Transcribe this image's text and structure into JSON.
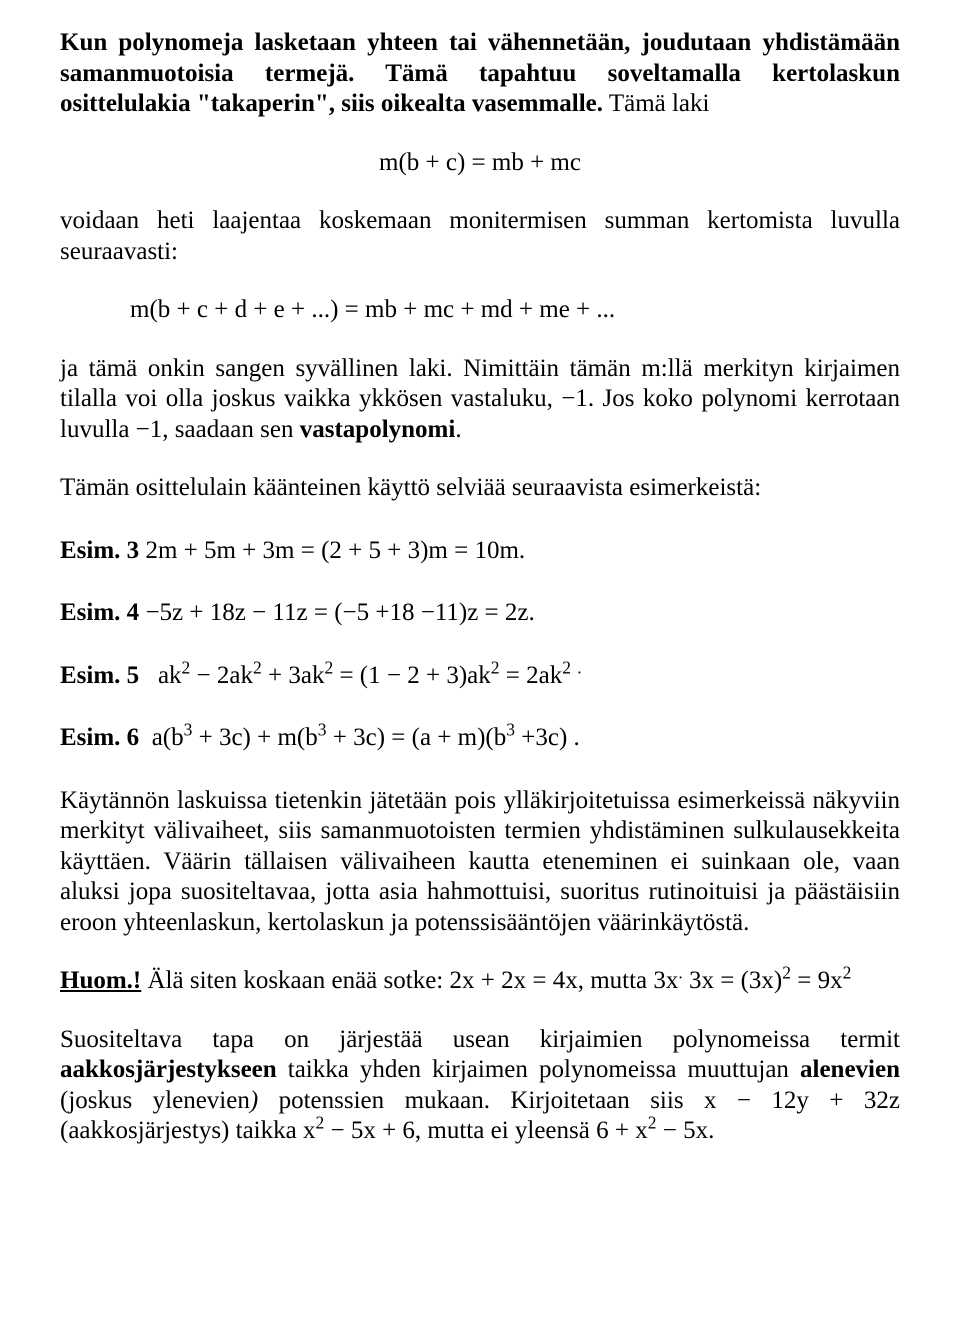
{
  "p1_lead": "Kun polynomeja lasketaan yhteen tai vähennetään, joudutaan yhdistämään samanmuotoisia termejä. Tämä tapahtuu soveltamalla kertolaskun osittelulakia \"takaperin\", siis oikealta vasemmalle.",
  "p1_tail": " Tämä laki",
  "eq1": "m(b + c) = mb + mc",
  "p2": "voidaan heti laajentaa koskemaan monitermisen summan kertomista luvulla seuraavasti:",
  "eq2": "m(b + c + d + e + ...) = mb + mc + md + me + ...",
  "p3_a": "ja tämä onkin sangen syvällinen laki. Nimittäin tämän m:llä merkityn kirjaimen tilalla voi olla joskus vaikka ykkösen vastaluku, −1. Jos koko polynomi kerrotaan luvulla −1, saadaan sen ",
  "p3_b": "vastapolynomi",
  "p3_c": ".",
  "p4": "Tämän osittelulain käänteinen käyttö selviää seuraavista esimerkeistä:",
  "ex3_label": "Esim. 3",
  "ex3_body": "    2m + 5m + 3m = (2 + 5 + 3)m = 10m.",
  "ex4_label": "Esim. 4",
  "ex4_body": "   −5z + 18z − 11z  =  (−5 +18 −11)z = 2z.",
  "ex5_label": "Esim. 5",
  "ex6_label": "Esim. 6",
  "p5": "Käytännön laskuissa tietenkin jätetään pois ylläkirjoitetuissa esimerkeissä näkyviin merkityt välivaiheet, siis samanmuotoisten termien yhdistäminen sulkulausekkeita käyttäen. Väärin tällaisen välivaiheen kautta eteneminen ei suinkaan ole, vaan aluksi jopa suositeltavaa, jotta asia hahmottuisi, suoritus rutinoituisi ja päästäisiin eroon yhteenlaskun, kertolaskun ja potenssisääntöjen väärinkäytöstä.",
  "huom_label": "Huom.!",
  "p6_a": "Suositeltava tapa on järjestää usean kirjaimien polynomeissa termit ",
  "p6_b": "aakkosjärjestykseen",
  "p6_c": " taikka yhden kirjaimen polynomeissa muuttujan ",
  "p6_d": "alenevien",
  "p6_e": " (joskus ylenevien",
  "p6_f": ")",
  "p6_g": " potenssien mukaan.  Kirjoitetaan siis  x − 12y + 32z (aakkosjärjestys) taikka  x"
}
